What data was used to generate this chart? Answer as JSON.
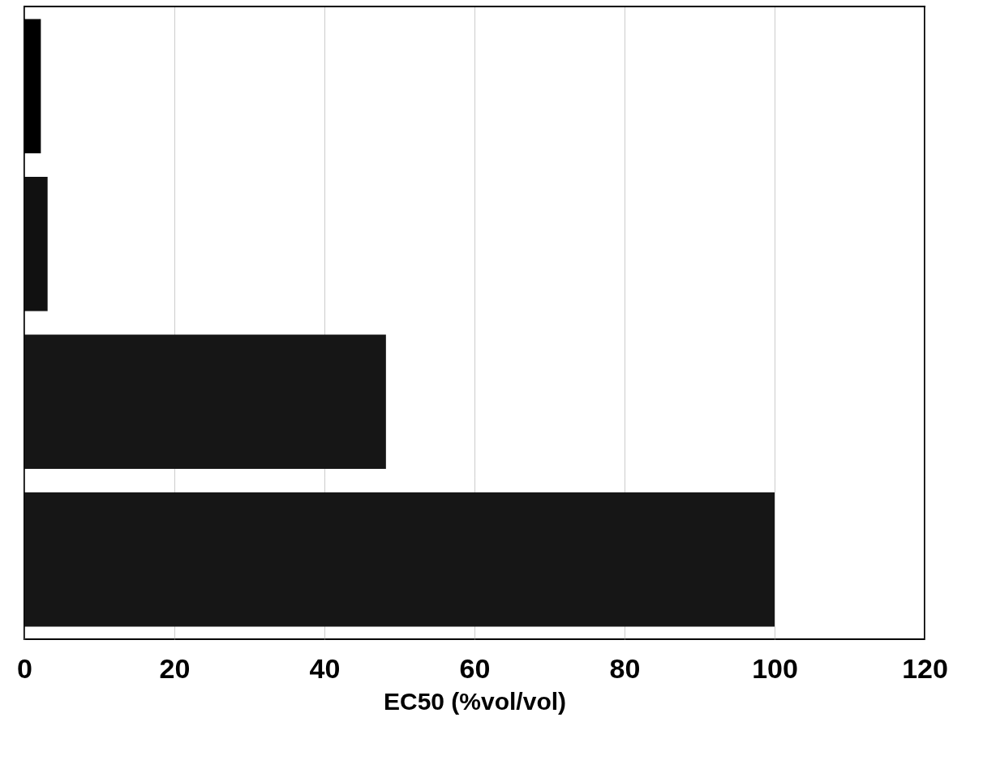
{
  "chart_data": {
    "type": "bar",
    "orientation": "horizontal",
    "xlabel": "EC50 (%vol/vol)",
    "categories": [
      null,
      null,
      null,
      null
    ],
    "values": [
      2.2,
      3.1,
      48.2,
      100
    ],
    "colors": [
      "#000000",
      "#111111",
      "#161616",
      "#161616"
    ],
    "xlim": [
      0,
      120
    ],
    "xticks": [
      0,
      20,
      40,
      60,
      80,
      100,
      120
    ],
    "grid": "x"
  }
}
